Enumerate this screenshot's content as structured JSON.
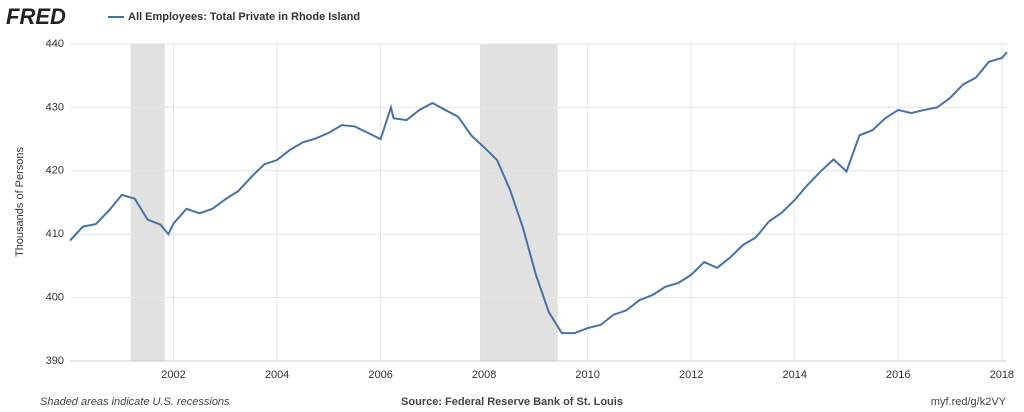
{
  "chart_data": {
    "type": "line",
    "brand": "FRED",
    "title": "All Employees: Total Private in Rhode Island",
    "ylabel": "Thousands of Persons",
    "footer_left": "Shaded areas indicate U.S. recessions",
    "footer_center": "Source: Federal Reserve Bank of St. Louis",
    "footer_right": "myf.red/g/k2VY",
    "x": [
      2000.0,
      2000.25,
      2000.5,
      2000.75,
      2001.0,
      2001.25,
      2001.5,
      2001.75,
      2001.9,
      2002.0,
      2002.25,
      2002.5,
      2002.75,
      2003.0,
      2003.25,
      2003.5,
      2003.75,
      2004.0,
      2004.25,
      2004.5,
      2004.75,
      2005.0,
      2005.25,
      2005.5,
      2005.75,
      2006.0,
      2006.2,
      2006.25,
      2006.5,
      2006.75,
      2007.0,
      2007.25,
      2007.5,
      2007.75,
      2008.0,
      2008.25,
      2008.5,
      2008.75,
      2009.0,
      2009.25,
      2009.5,
      2009.75,
      2010.0,
      2010.25,
      2010.5,
      2010.75,
      2011.0,
      2011.25,
      2011.5,
      2011.75,
      2012.0,
      2012.25,
      2012.5,
      2012.75,
      2013.0,
      2013.25,
      2013.5,
      2013.75,
      2014.0,
      2014.25,
      2014.5,
      2014.75,
      2015.0,
      2015.25,
      2015.5,
      2015.75,
      2016.0,
      2016.25,
      2016.5,
      2016.75,
      2017.0,
      2017.25,
      2017.5,
      2017.75,
      2018.0,
      2018.1
    ],
    "series": [
      {
        "name": "All Employees: Total Private in Rhode Island",
        "color": "#4572a7",
        "values": [
          409,
          411.2,
          411.6,
          413.7,
          416.2,
          415.6,
          412.3,
          411.5,
          410,
          411.7,
          414,
          413.3,
          414,
          415.5,
          416.8,
          419,
          421,
          421.7,
          423.3,
          424.5,
          425.1,
          426,
          427.2,
          427,
          426,
          425,
          430,
          428.3,
          428,
          429.6,
          430.7,
          429.6,
          428.5,
          425.6,
          423.7,
          421.7,
          417,
          411,
          403.6,
          397.7,
          394.4,
          394.4,
          395.2,
          395.7,
          397.3,
          398,
          399.6,
          400.4,
          401.7,
          402.3,
          403.6,
          405.6,
          404.7,
          406.3,
          408.3,
          409.5,
          412,
          413.4,
          415.4,
          417.8,
          419.9,
          421.8,
          419.9,
          425.6,
          426.4,
          428.3,
          429.6,
          429.1,
          429.6,
          430,
          431.5,
          433.6,
          434.7,
          437.2,
          437.8,
          438.7
        ]
      }
    ],
    "recessions": [
      [
        2001.17,
        2001.83
      ],
      [
        2007.92,
        2009.42
      ]
    ],
    "recession_color": "#e1e1e1",
    "xlim": [
      2000.0,
      2018.1
    ],
    "xticks": [
      2002,
      2004,
      2006,
      2008,
      2010,
      2012,
      2014,
      2016,
      2018
    ],
    "ylim": [
      390,
      440
    ],
    "yticks": [
      390,
      400,
      410,
      420,
      430,
      440
    ],
    "grid": true
  }
}
